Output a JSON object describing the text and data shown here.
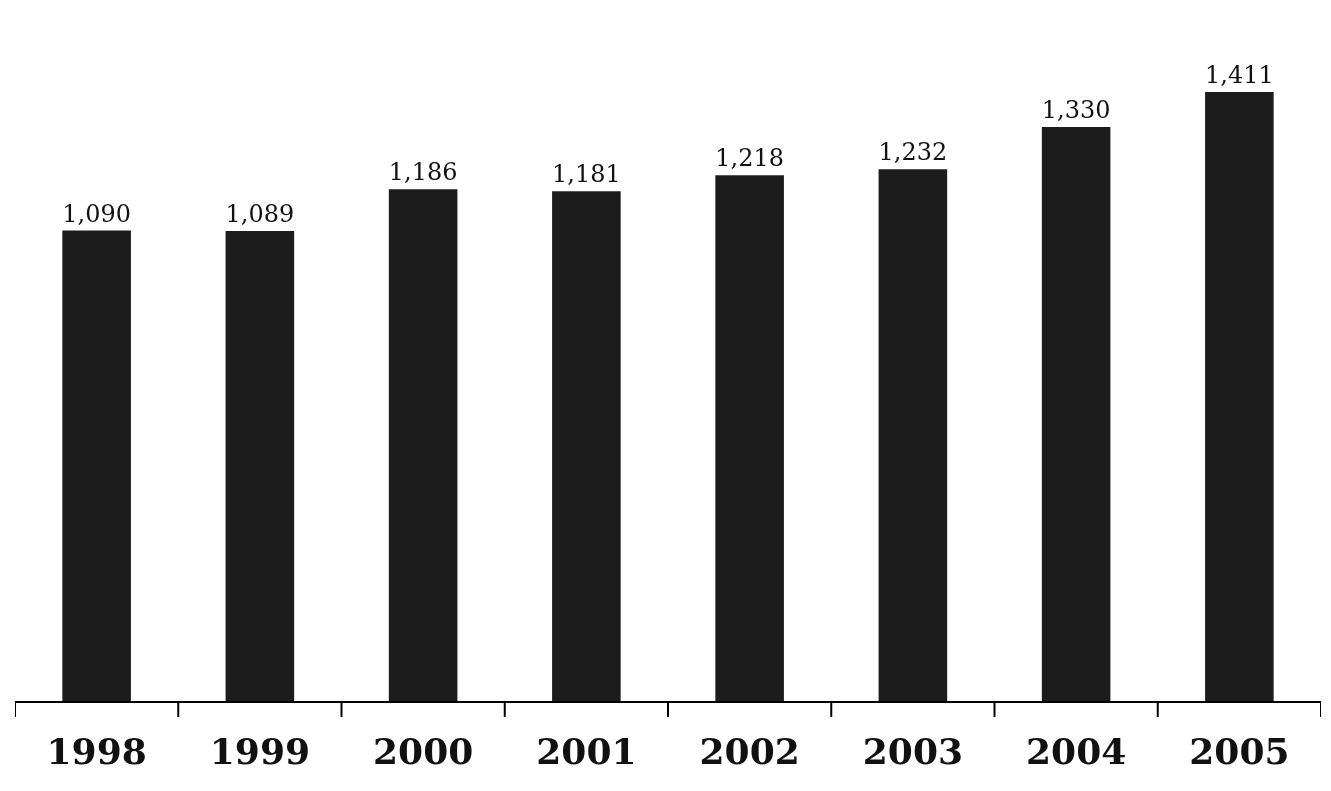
{
  "chart_data": {
    "type": "bar",
    "categories": [
      "1998",
      "1999",
      "2000",
      "2001",
      "2002",
      "2003",
      "2004",
      "2005"
    ],
    "values": [
      1090,
      1089,
      1186,
      1181,
      1218,
      1232,
      1330,
      1411
    ],
    "value_labels": [
      "1,090",
      "1,089",
      "1,186",
      "1,181",
      "1,218",
      "1,232",
      "1,330",
      "1,411"
    ],
    "color": "#1c1c1c"
  }
}
